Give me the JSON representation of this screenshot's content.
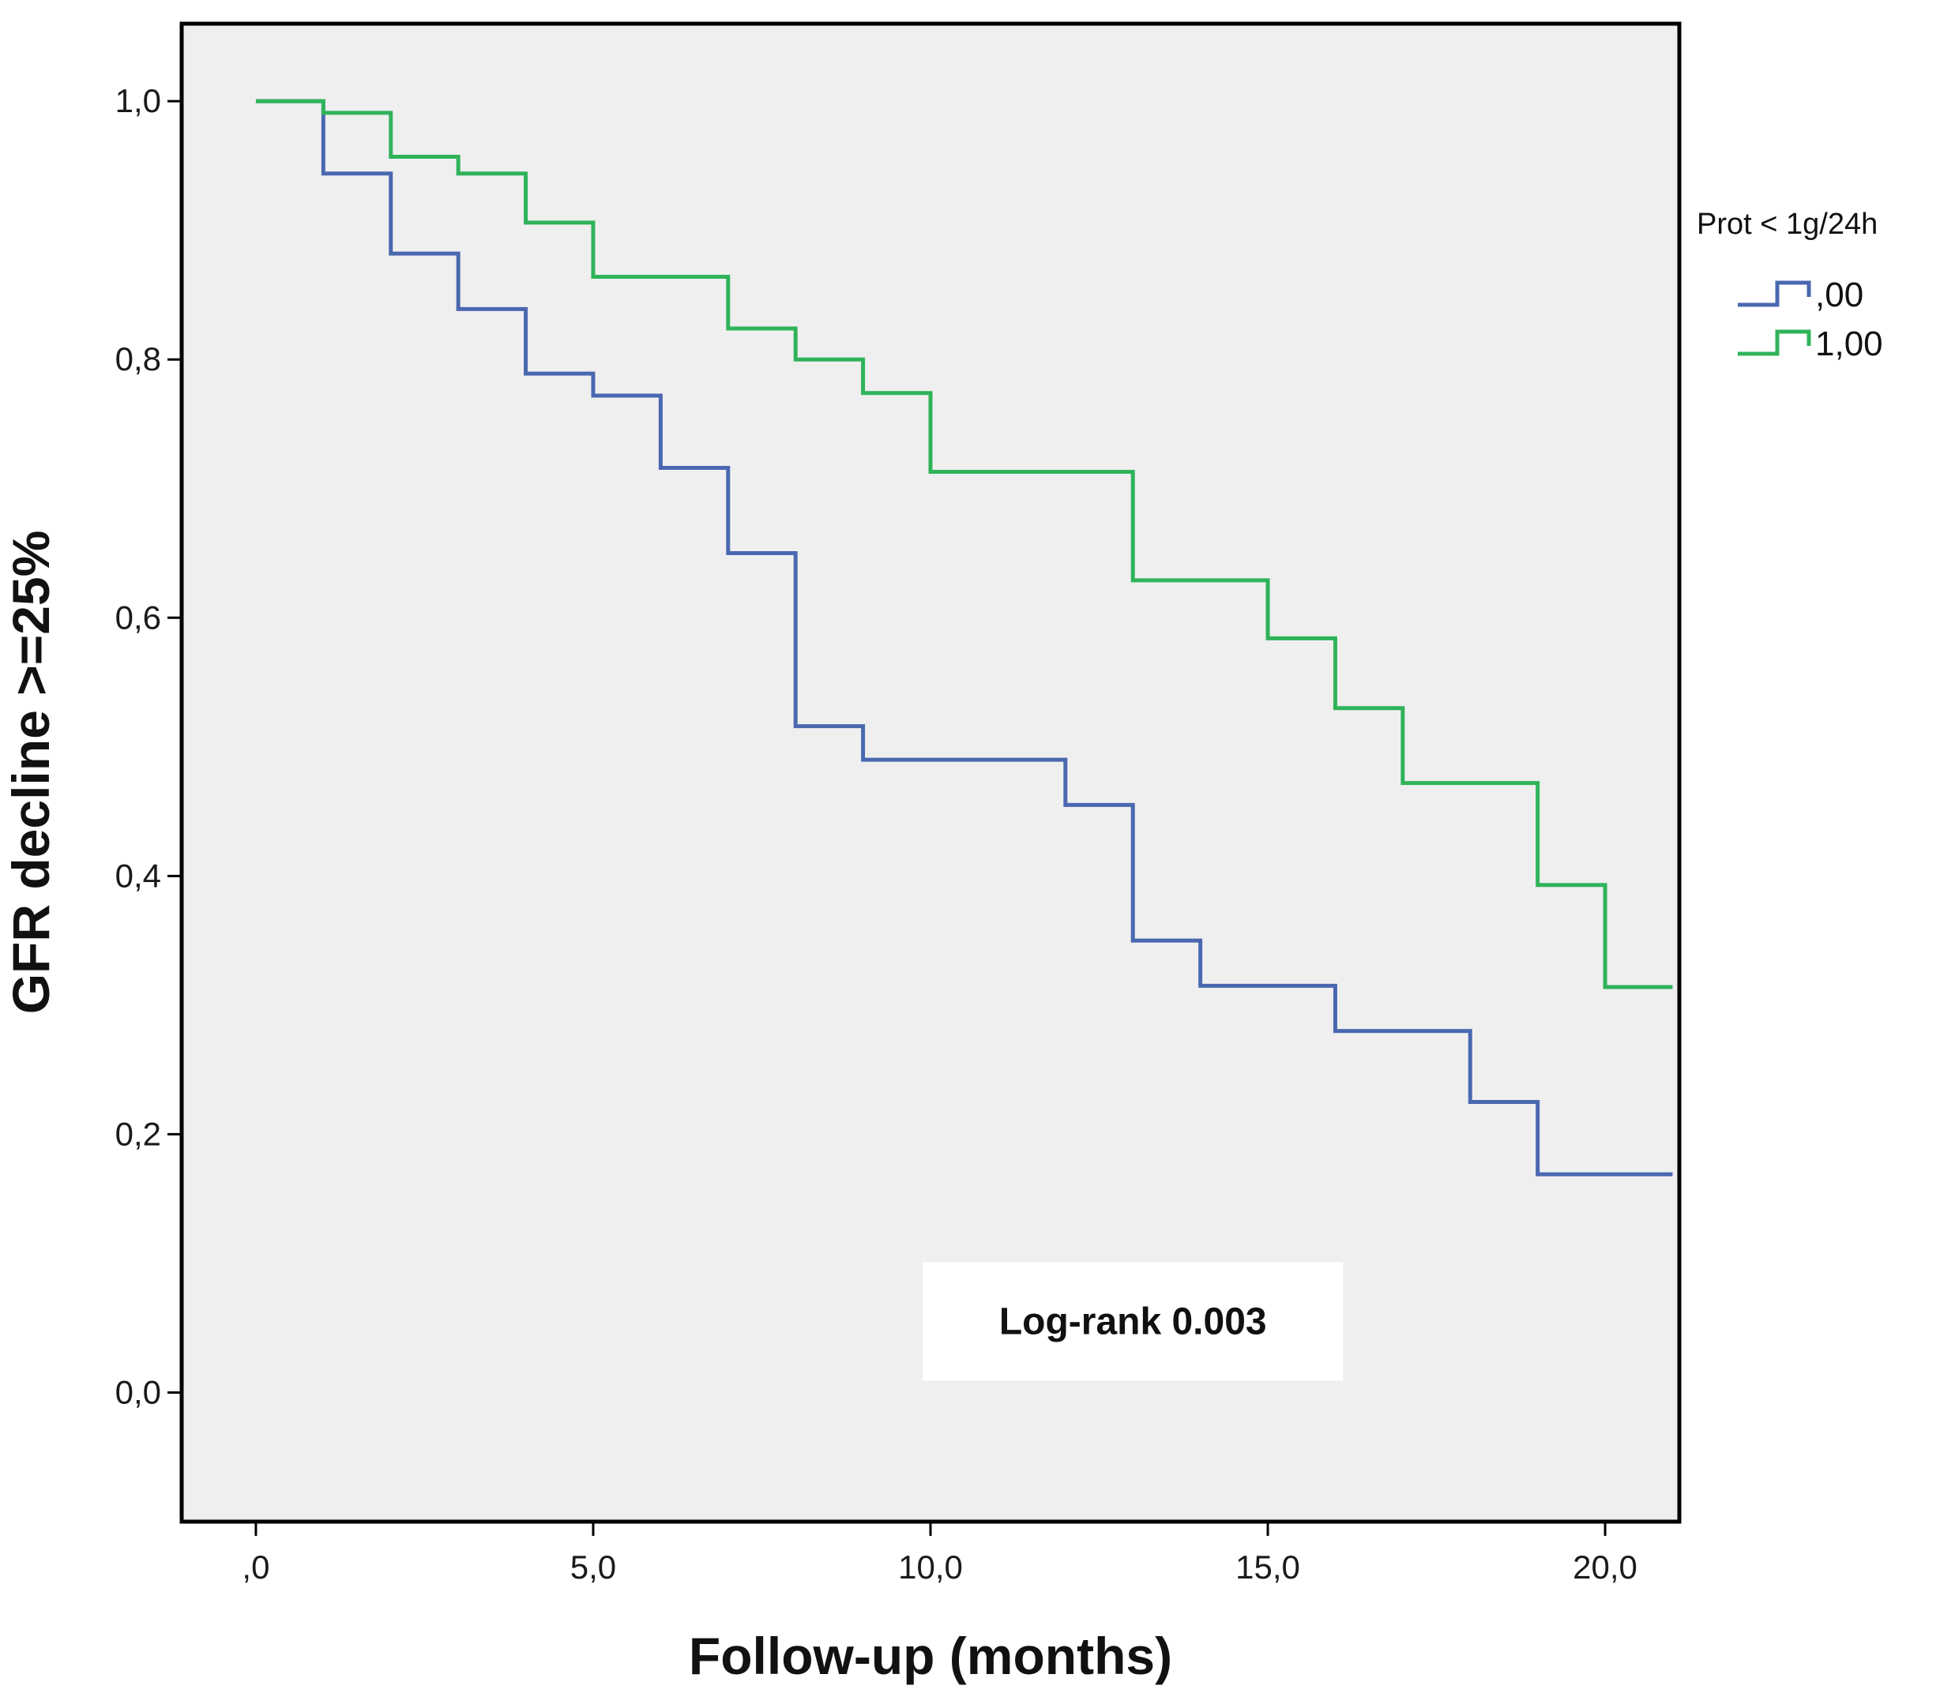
{
  "chart_data": {
    "type": "line",
    "subtype": "kaplan-meier-step",
    "title": "",
    "xlabel": "Follow-up (months)",
    "ylabel": "GFR decline >=25%",
    "xlim": [
      -1.1,
      21.1
    ],
    "ylim": [
      -0.1,
      1.06
    ],
    "x_ticks": [
      0,
      5,
      10,
      15,
      20
    ],
    "x_tick_labels": [
      ",0",
      "5,0",
      "10,0",
      "15,0",
      "20,0"
    ],
    "y_ticks": [
      0,
      0.2,
      0.4,
      0.6,
      0.8,
      1.0
    ],
    "y_tick_labels": [
      "0,0",
      "0,2",
      "0,4",
      "0,6",
      "0,8",
      "1,0"
    ],
    "grid": false,
    "plot_background": "#efefef",
    "legend": {
      "title": "Prot < 1g/24h",
      "position": "right-top outside"
    },
    "series": [
      {
        "name": ",00",
        "color": "#4a68b0",
        "x": [
          0,
          1,
          2,
          3,
          4,
          5,
          6,
          7,
          8,
          9,
          12,
          13,
          14,
          16,
          18,
          19,
          21
        ],
        "y": [
          1.0,
          0.944,
          0.882,
          0.839,
          0.789,
          0.772,
          0.716,
          0.65,
          0.516,
          0.49,
          0.455,
          0.35,
          0.315,
          0.28,
          0.225,
          0.169,
          0.169
        ]
      },
      {
        "name": "1,00",
        "color": "#2fb35a",
        "x": [
          0,
          1,
          2,
          3,
          4,
          5,
          7,
          8,
          9,
          10,
          13,
          15,
          16,
          17,
          19,
          20,
          21
        ],
        "y": [
          1.0,
          0.991,
          0.957,
          0.944,
          0.906,
          0.864,
          0.824,
          0.8,
          0.774,
          0.713,
          0.629,
          0.584,
          0.53,
          0.472,
          0.393,
          0.314,
          0.314
        ]
      }
    ],
    "annotations": [
      {
        "text": "Log-rank 0.003",
        "x": 13,
        "y": 0.055
      }
    ]
  }
}
